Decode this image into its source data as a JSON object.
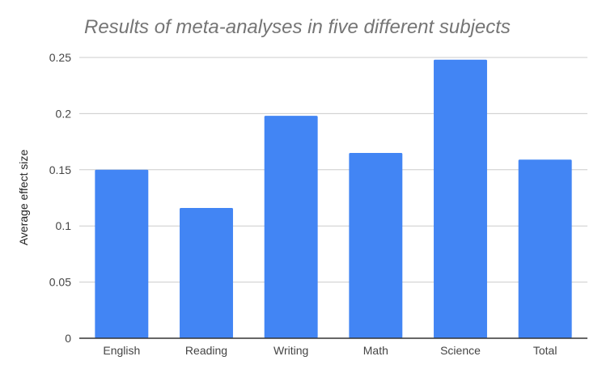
{
  "chart_data": {
    "type": "bar",
    "title": "Results of meta-analyses in five different subjects",
    "xlabel": "",
    "ylabel": "Average effect size",
    "categories": [
      "English",
      "Reading",
      "Writing",
      "Math",
      "Science",
      "Total"
    ],
    "series": [
      {
        "values": [
          0.15,
          0.116,
          0.198,
          0.165,
          0.248,
          0.159
        ],
        "color": "#4285F4"
      }
    ],
    "ylim": [
      0,
      0.25
    ],
    "yticks": [
      "0",
      "0.05",
      "0.1",
      "0.15",
      "0.2",
      "0.25"
    ],
    "grid": true,
    "legend": "none"
  }
}
